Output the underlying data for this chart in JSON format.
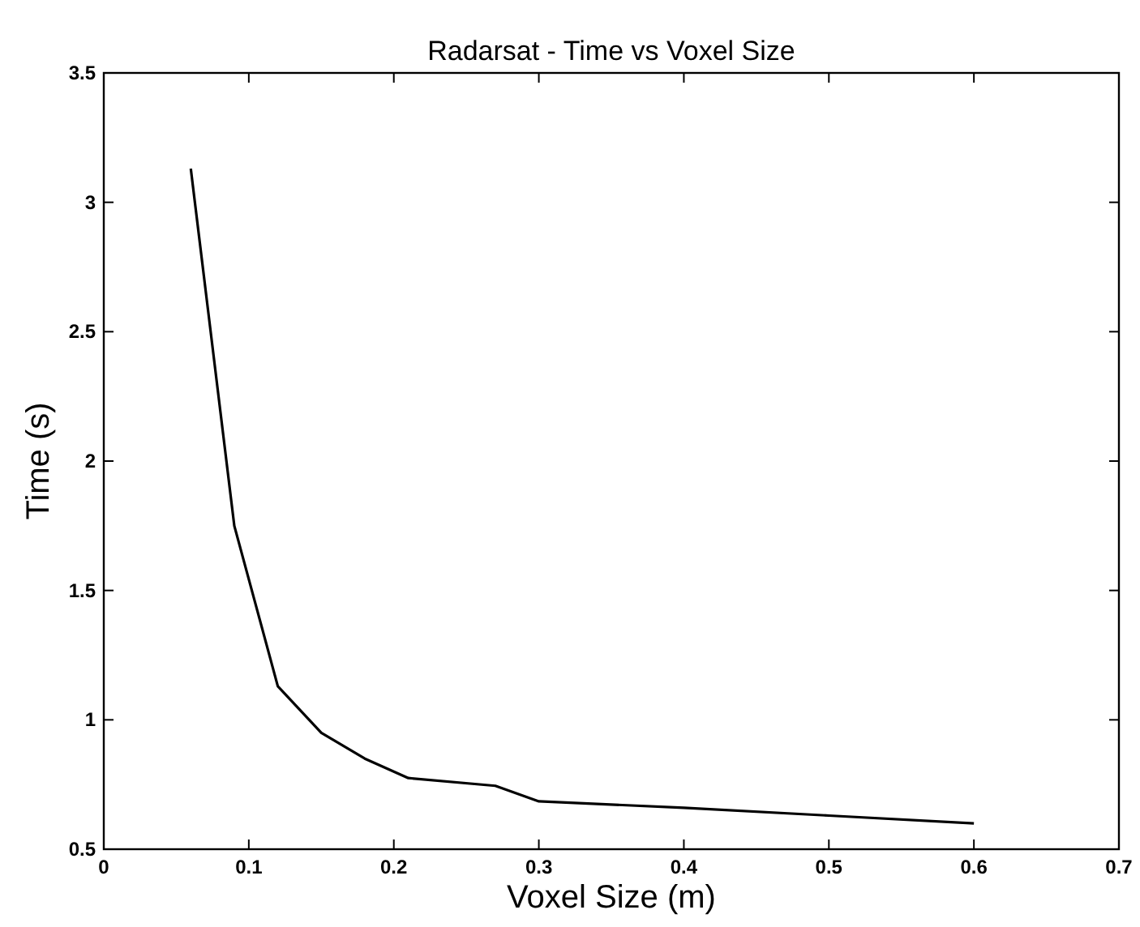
{
  "chart_data": {
    "type": "line",
    "title": "Radarsat - Time vs Voxel Size",
    "xlabel": "Voxel Size (m)",
    "ylabel": "Time (s)",
    "x": [
      0.06,
      0.09,
      0.12,
      0.15,
      0.18,
      0.21,
      0.27,
      0.3,
      0.4,
      0.5,
      0.6
    ],
    "series": [
      {
        "color": "#000000",
        "values": [
          3.13,
          1.75,
          1.13,
          0.95,
          0.85,
          0.775,
          0.745,
          0.685,
          0.66,
          0.63,
          0.6
        ]
      }
    ],
    "xlim": [
      0,
      0.7
    ],
    "ylim": [
      0.5,
      3.5
    ],
    "xticks": [
      0,
      0.1,
      0.2,
      0.3,
      0.4,
      0.5,
      0.6,
      0.7
    ],
    "yticks": [
      0.5,
      1,
      1.5,
      2,
      2.5,
      3,
      3.5
    ],
    "grid": false,
    "marker": "none",
    "line_style": "solid"
  }
}
